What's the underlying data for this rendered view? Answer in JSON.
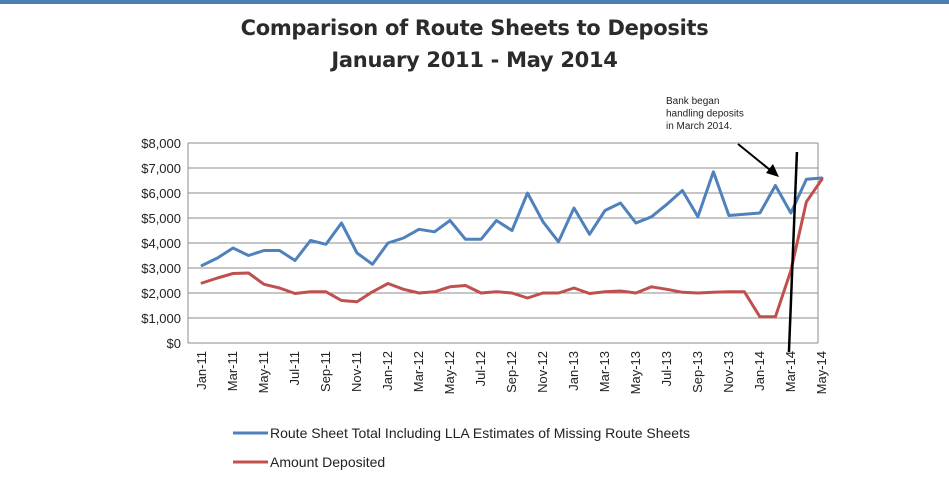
{
  "header": {
    "title_line1": "Comparison of Route Sheets to Deposits",
    "title_line2": "January 2011 - May 2014"
  },
  "chart_data": {
    "type": "line",
    "title": "Comparison of Route Sheets to Deposits January 2011 - May 2014",
    "xlabel": "",
    "ylabel": "",
    "ylim": [
      0,
      8000
    ],
    "yticks": [
      0,
      1000,
      2000,
      3000,
      4000,
      5000,
      6000,
      7000,
      8000
    ],
    "ytick_labels": [
      "$0",
      "$1,000",
      "$2,000",
      "$3,000",
      "$4,000",
      "$5,000",
      "$6,000",
      "$7,000",
      "$8,000"
    ],
    "grid": true,
    "x": [
      "Jan-11",
      "Feb-11",
      "Mar-11",
      "Apr-11",
      "May-11",
      "Jun-11",
      "Jul-11",
      "Aug-11",
      "Sep-11",
      "Oct-11",
      "Nov-11",
      "Dec-11",
      "Jan-12",
      "Feb-12",
      "Mar-12",
      "Apr-12",
      "May-12",
      "Jun-12",
      "Jul-12",
      "Aug-12",
      "Sep-12",
      "Oct-12",
      "Nov-12",
      "Dec-12",
      "Jan-13",
      "Feb-13",
      "Mar-13",
      "Apr-13",
      "May-13",
      "Jun-13",
      "Jul-13",
      "Aug-13",
      "Sep-13",
      "Oct-13",
      "Nov-13",
      "Dec-13",
      "Jan-14",
      "Feb-14",
      "Mar-14",
      "Apr-14",
      "May-14"
    ],
    "xtick_labels": [
      "Jan-11",
      "Mar-11",
      "May-11",
      "Jul-11",
      "Sep-11",
      "Nov-11",
      "Jan-12",
      "Mar-12",
      "May-12",
      "Jul-12",
      "Sep-12",
      "Nov-12",
      "Jan-13",
      "Mar-13",
      "May-13",
      "Jul-13",
      "Sep-13",
      "Nov-13",
      "Jan-14",
      "Mar-14",
      "May-14"
    ],
    "series": [
      {
        "name": "Route Sheet Total Including LLA Estimates of Missing Route Sheets",
        "color": "#4f81bd",
        "values": [
          3100,
          3400,
          3800,
          3500,
          3700,
          3700,
          3300,
          4100,
          3950,
          4800,
          3600,
          3150,
          4000,
          4200,
          4550,
          4450,
          4900,
          4150,
          4150,
          4900,
          4500,
          6000,
          4850,
          4050,
          5400,
          4350,
          5300,
          5600,
          4800,
          5050,
          5550,
          6100,
          5050,
          6850,
          5100,
          5150,
          5200,
          6300,
          5200,
          6550,
          6600
        ]
      },
      {
        "name": "Amount Deposited",
        "color": "#c0504d",
        "values": [
          2400,
          2600,
          2780,
          2800,
          2350,
          2200,
          1980,
          2050,
          2050,
          1700,
          1650,
          2050,
          2380,
          2150,
          2000,
          2050,
          2250,
          2300,
          2000,
          2050,
          2000,
          1800,
          2000,
          2000,
          2200,
          1980,
          2050,
          2080,
          2000,
          2250,
          2150,
          2030,
          2000,
          2030,
          2050,
          2050,
          1050,
          1050,
          2900,
          5650,
          6550
        ]
      }
    ],
    "annotation": {
      "lines": [
        "Bank began",
        "handling deposits",
        "in March 2014."
      ],
      "points_to": "Mar-14"
    },
    "legend_position": "bottom"
  }
}
